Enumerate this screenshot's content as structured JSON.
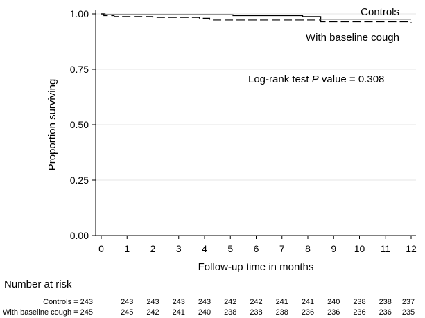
{
  "chart_data": {
    "type": "line",
    "title": "",
    "xlabel": "Follow-up time in months",
    "ylabel": "Proportion surviving",
    "xlim": [
      0,
      12
    ],
    "ylim": [
      0,
      1
    ],
    "x_ticks": [
      "0",
      "1",
      "2",
      "3",
      "4",
      "5",
      "6",
      "7",
      "8",
      "9",
      "10",
      "11",
      "12"
    ],
    "y_ticks": [
      "0.00",
      "0.25",
      "0.50",
      "0.75",
      "1.00"
    ],
    "grid": true,
    "series": [
      {
        "name": "Controls",
        "style": "solid",
        "x": [
          0,
          0.15,
          4.2,
          5.1,
          7.8,
          8.5,
          12
        ],
        "y": [
          1.0,
          0.996,
          0.996,
          0.992,
          0.988,
          0.976,
          0.976
        ]
      },
      {
        "name": "With baseline cough",
        "style": "dashed",
        "x": [
          0,
          0.1,
          0.5,
          2.0,
          3.8,
          4.2,
          8.5,
          12
        ],
        "y": [
          1.0,
          0.992,
          0.988,
          0.984,
          0.98,
          0.972,
          0.964,
          0.96
        ]
      }
    ],
    "annotations": {
      "logrank_prefix": "Log-rank test ",
      "logrank_p": "P",
      "logrank_suffix": " value = 0.308"
    },
    "risk_table": {
      "title": "Number at risk",
      "rows": [
        {
          "label": "Controls = 243",
          "values": [
            "243",
            "243",
            "243",
            "243",
            "242",
            "242",
            "241",
            "241",
            "240",
            "238",
            "238",
            "237"
          ]
        },
        {
          "label": "With baseline cough = 245",
          "values": [
            "245",
            "242",
            "241",
            "240",
            "238",
            "238",
            "238",
            "236",
            "236",
            "236",
            "236",
            "235"
          ]
        }
      ]
    }
  }
}
